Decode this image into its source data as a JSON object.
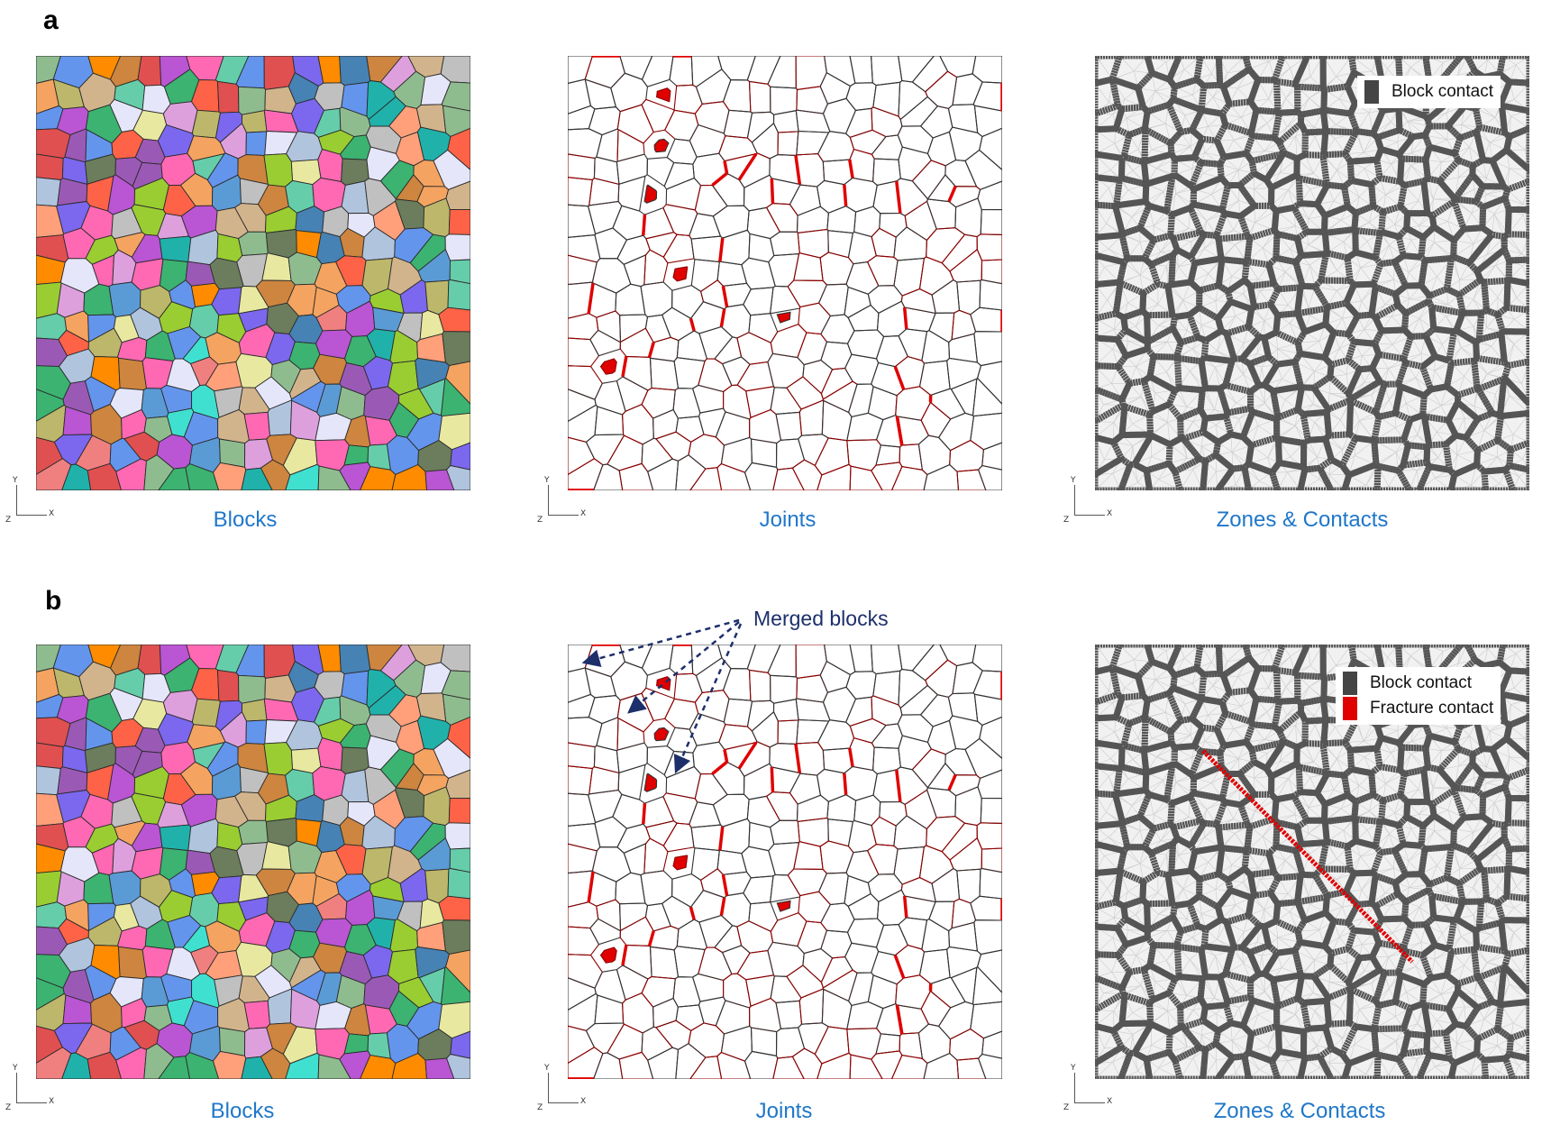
{
  "rows": [
    {
      "label": "a",
      "captions": {
        "blocks": "Blocks",
        "joints": "Joints",
        "zones": "Zones & Contacts"
      },
      "legend": [
        {
          "label": "Block contact",
          "color": "#454545"
        }
      ],
      "fracture": false
    },
    {
      "label": "b",
      "captions": {
        "blocks": "Blocks",
        "joints": "Joints",
        "zones": "Zones & Contacts"
      },
      "legend": [
        {
          "label": "Block contact",
          "color": "#454545"
        },
        {
          "label": "Fracture contact",
          "color": "#e00000"
        }
      ],
      "fracture": true
    }
  ],
  "annotation": {
    "text": "Merged blocks",
    "color": "#1d2f6b"
  },
  "axes": {
    "y": "Y",
    "x": "X",
    "z": "Z"
  },
  "colors": {
    "caption": "#1f77c9",
    "joint_line": "#333333",
    "joint_red": "#8b0000",
    "merged_fill": "#e00000",
    "zone_line": "#555555",
    "fracture": "#e00000"
  },
  "block_palette": [
    "#6b7d5c",
    "#e8e8a0",
    "#9b59b6",
    "#f4a460",
    "#3cb371",
    "#5b9bd5",
    "#e05050",
    "#ff69b4",
    "#40e0d0",
    "#7b68ee",
    "#bdb76b",
    "#dda0dd",
    "#cd853f",
    "#66cdaa",
    "#f08080",
    "#8fbc8f",
    "#ba55d3",
    "#4682b4",
    "#d2b48c",
    "#c0c0c0",
    "#ffa07a",
    "#6495ed",
    "#9acd32",
    "#ff8c00",
    "#e6e6fa",
    "#20b2aa",
    "#b0c4de",
    "#ff6347"
  ]
}
